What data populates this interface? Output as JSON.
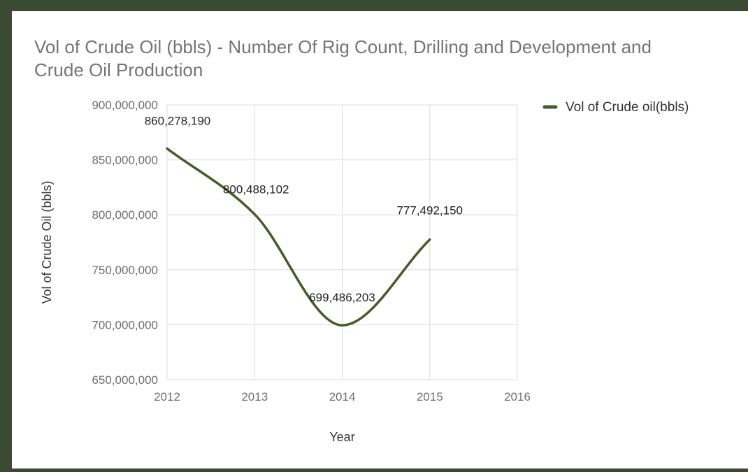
{
  "chart_data": {
    "type": "line",
    "title": "Vol of Crude Oil (bbls) - Number Of Rig Count, Drilling and Development and Crude Oil Production",
    "title_lines": [
      "Vol of Crude Oil (bbls) - Number Of Rig Count, Drilling and Development and",
      "Crude Oil Production"
    ],
    "xlabel": "Year",
    "ylabel": "Vol of Crude Oil (bbls)",
    "x": [
      2012,
      2013,
      2014,
      2015
    ],
    "series": [
      {
        "name": "Vol of Crude oil(bbls)",
        "color": "#4b5a2a",
        "values": [
          860278190,
          800488102,
          699486203,
          777492150
        ],
        "labels": [
          "860,278,190",
          "800,488,102",
          "699,486,203",
          "777,492,150"
        ]
      }
    ],
    "xlim": [
      2012,
      2016
    ],
    "ylim": [
      650000000,
      900000000
    ],
    "x_ticks": [
      "2012",
      "2013",
      "2014",
      "2015",
      "2016"
    ],
    "y_ticks": [
      "650,000,000",
      "700,000,000",
      "750,000,000",
      "800,000,000",
      "850,000,000",
      "900,000,000"
    ],
    "grid": true,
    "legend_position": "top-right",
    "smooth": true
  }
}
